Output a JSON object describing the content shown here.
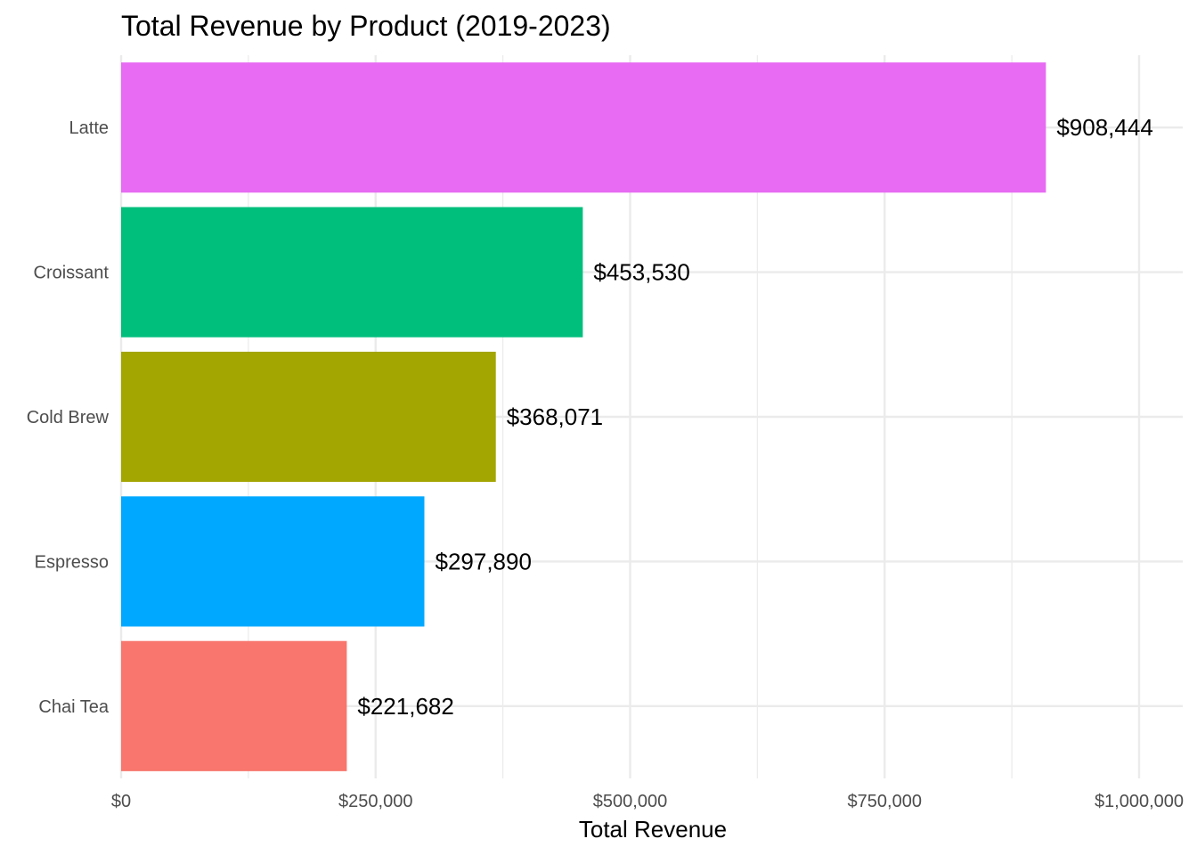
{
  "chart_data": {
    "type": "bar",
    "orientation": "horizontal",
    "title": "Total Revenue by Product (2019-2023)",
    "xlabel": "Total Revenue",
    "ylabel": "",
    "categories": [
      "Chai Tea",
      "Espresso",
      "Cold Brew",
      "Croissant",
      "Latte"
    ],
    "values": [
      221682,
      297890,
      368071,
      453530,
      908444
    ],
    "value_labels": [
      "$221,682",
      "$297,890",
      "$368,071",
      "$453,530",
      "$908,444"
    ],
    "colors": [
      "#F8766D",
      "#00A9FF",
      "#A3A500",
      "#00BF7D",
      "#E76BF3"
    ],
    "xlim": [
      0,
      1000000
    ],
    "x_ticks": [
      0,
      250000,
      500000,
      750000,
      1000000
    ],
    "x_tick_labels": [
      "$0",
      "$250,000",
      "$500,000",
      "$750,000",
      "$1,000,000"
    ],
    "grid": true,
    "legend": "none"
  }
}
